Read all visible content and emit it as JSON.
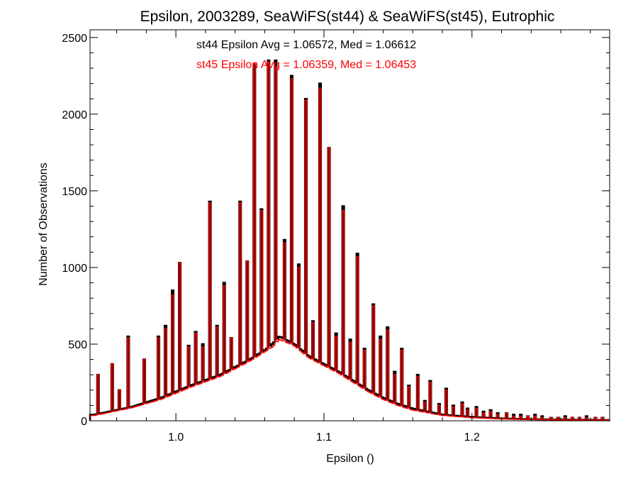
{
  "chart_data": {
    "type": "histogram",
    "title": "Epsilon, 2003289, SeaWiFS(st44) & SeaWiFS(st45), Eutrophic",
    "xlabel": "Epsilon ()",
    "ylabel": "Number of Observations",
    "xlim": [
      0.942,
      1.293
    ],
    "ylim": [
      0,
      2550
    ],
    "xticks": [
      1.0,
      1.1,
      1.2
    ],
    "xtick_labels": [
      "1.0",
      "1.1",
      "1.2"
    ],
    "yticks": [
      0,
      500,
      1000,
      1500,
      2000,
      2500
    ],
    "ytick_labels": [
      "0",
      "500",
      "1000",
      "1500",
      "2000",
      "2500"
    ],
    "grid": false,
    "annotations": [
      {
        "text": "st44 Epsilon Avg = 1.06572, Med = 1.06612",
        "color": "#000000"
      },
      {
        "text": "st45 Epsilon Avg = 1.06359, Med = 1.06453",
        "color": "#ff0000"
      }
    ],
    "series": [
      {
        "color": "#000000",
        "peaks": [
          [
            0.947,
            300
          ],
          [
            0.957,
            370
          ],
          [
            0.962,
            200
          ],
          [
            0.968,
            550
          ],
          [
            0.978,
            400
          ],
          [
            0.988,
            550
          ],
          [
            0.993,
            620
          ],
          [
            0.998,
            850
          ],
          [
            1.003,
            1030
          ],
          [
            1.008,
            490
          ],
          [
            1.013,
            580
          ],
          [
            1.018,
            500
          ],
          [
            1.023,
            1430
          ],
          [
            1.028,
            620
          ],
          [
            1.033,
            900
          ],
          [
            1.038,
            540
          ],
          [
            1.043,
            1430
          ],
          [
            1.048,
            1040
          ],
          [
            1.053,
            2320
          ],
          [
            1.058,
            1380
          ],
          [
            1.063,
            2350
          ],
          [
            1.068,
            2350
          ],
          [
            1.073,
            1180
          ],
          [
            1.078,
            2250
          ],
          [
            1.083,
            1020
          ],
          [
            1.088,
            2100
          ],
          [
            1.093,
            650
          ],
          [
            1.098,
            2200
          ],
          [
            1.103,
            1780
          ],
          [
            1.108,
            570
          ],
          [
            1.113,
            1400
          ],
          [
            1.118,
            530
          ],
          [
            1.123,
            1090
          ],
          [
            1.128,
            470
          ],
          [
            1.133,
            760
          ],
          [
            1.138,
            550
          ],
          [
            1.143,
            610
          ],
          [
            1.148,
            320
          ],
          [
            1.153,
            470
          ],
          [
            1.158,
            230
          ],
          [
            1.163,
            300
          ],
          [
            1.168,
            130
          ],
          [
            1.172,
            260
          ],
          [
            1.178,
            110
          ],
          [
            1.183,
            210
          ],
          [
            1.188,
            100
          ],
          [
            1.193,
            120
          ],
          [
            1.197,
            80
          ],
          [
            1.203,
            90
          ],
          [
            1.208,
            60
          ],
          [
            1.213,
            70
          ],
          [
            1.218,
            50
          ],
          [
            1.223,
            50
          ],
          [
            1.228,
            40
          ],
          [
            1.233,
            40
          ],
          [
            1.238,
            30
          ],
          [
            1.243,
            40
          ],
          [
            1.248,
            30
          ],
          [
            1.253,
            20
          ],
          [
            1.258,
            20
          ],
          [
            1.263,
            30
          ],
          [
            1.268,
            20
          ],
          [
            1.273,
            20
          ],
          [
            1.278,
            30
          ],
          [
            1.283,
            20
          ],
          [
            1.288,
            20
          ]
        ],
        "baseline": [
          [
            0.945,
            40
          ],
          [
            0.97,
            90
          ],
          [
            0.99,
            150
          ],
          [
            1.01,
            230
          ],
          [
            1.03,
            300
          ],
          [
            1.05,
            400
          ],
          [
            1.06,
            460
          ],
          [
            1.065,
            500
          ],
          [
            1.07,
            550
          ],
          [
            1.08,
            500
          ],
          [
            1.09,
            420
          ],
          [
            1.1,
            370
          ],
          [
            1.11,
            320
          ],
          [
            1.12,
            260
          ],
          [
            1.13,
            200
          ],
          [
            1.14,
            150
          ],
          [
            1.15,
            110
          ],
          [
            1.16,
            80
          ],
          [
            1.18,
            40
          ],
          [
            1.2,
            25
          ],
          [
            1.22,
            15
          ],
          [
            1.24,
            10
          ],
          [
            1.26,
            8
          ],
          [
            1.29,
            5
          ]
        ]
      },
      {
        "color": "#ff0000",
        "peaks": [
          [
            0.947,
            300
          ],
          [
            0.957,
            370
          ],
          [
            0.962,
            200
          ],
          [
            0.968,
            540
          ],
          [
            0.978,
            400
          ],
          [
            0.988,
            540
          ],
          [
            0.993,
            600
          ],
          [
            0.998,
            820
          ],
          [
            1.003,
            1030
          ],
          [
            1.008,
            480
          ],
          [
            1.013,
            570
          ],
          [
            1.018,
            480
          ],
          [
            1.023,
            1420
          ],
          [
            1.028,
            610
          ],
          [
            1.033,
            880
          ],
          [
            1.038,
            540
          ],
          [
            1.043,
            1420
          ],
          [
            1.048,
            1040
          ],
          [
            1.053,
            2330
          ],
          [
            1.058,
            1370
          ],
          [
            1.063,
            2340
          ],
          [
            1.068,
            2310
          ],
          [
            1.073,
            1160
          ],
          [
            1.078,
            2230
          ],
          [
            1.083,
            1000
          ],
          [
            1.088,
            2090
          ],
          [
            1.093,
            640
          ],
          [
            1.098,
            2170
          ],
          [
            1.103,
            1780
          ],
          [
            1.108,
            550
          ],
          [
            1.113,
            1370
          ],
          [
            1.118,
            510
          ],
          [
            1.123,
            1070
          ],
          [
            1.128,
            460
          ],
          [
            1.133,
            750
          ],
          [
            1.138,
            530
          ],
          [
            1.143,
            590
          ],
          [
            1.148,
            300
          ],
          [
            1.153,
            460
          ],
          [
            1.158,
            220
          ],
          [
            1.163,
            290
          ],
          [
            1.168,
            120
          ],
          [
            1.172,
            250
          ],
          [
            1.178,
            100
          ],
          [
            1.183,
            200
          ],
          [
            1.188,
            90
          ],
          [
            1.193,
            110
          ],
          [
            1.197,
            70
          ],
          [
            1.203,
            80
          ],
          [
            1.208,
            50
          ],
          [
            1.213,
            60
          ],
          [
            1.218,
            40
          ],
          [
            1.223,
            50
          ],
          [
            1.228,
            30
          ],
          [
            1.233,
            30
          ],
          [
            1.238,
            30
          ],
          [
            1.243,
            30
          ],
          [
            1.248,
            20
          ],
          [
            1.253,
            20
          ],
          [
            1.258,
            20
          ],
          [
            1.263,
            20
          ],
          [
            1.268,
            20
          ],
          [
            1.273,
            20
          ],
          [
            1.278,
            20
          ],
          [
            1.283,
            20
          ],
          [
            1.288,
            20
          ]
        ],
        "baseline": [
          [
            0.945,
            35
          ],
          [
            0.97,
            85
          ],
          [
            0.99,
            140
          ],
          [
            1.01,
            220
          ],
          [
            1.03,
            290
          ],
          [
            1.05,
            390
          ],
          [
            1.06,
            450
          ],
          [
            1.065,
            480
          ],
          [
            1.07,
            530
          ],
          [
            1.08,
            490
          ],
          [
            1.09,
            410
          ],
          [
            1.1,
            360
          ],
          [
            1.11,
            310
          ],
          [
            1.12,
            250
          ],
          [
            1.13,
            190
          ],
          [
            1.14,
            140
          ],
          [
            1.15,
            100
          ],
          [
            1.16,
            70
          ],
          [
            1.18,
            35
          ],
          [
            1.2,
            20
          ],
          [
            1.22,
            12
          ],
          [
            1.24,
            8
          ],
          [
            1.26,
            6
          ],
          [
            1.29,
            4
          ]
        ]
      }
    ]
  }
}
